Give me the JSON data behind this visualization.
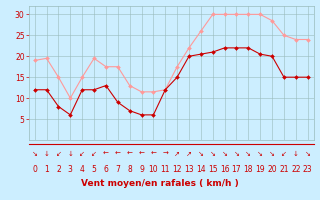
{
  "hours": [
    0,
    1,
    2,
    3,
    4,
    5,
    6,
    7,
    8,
    9,
    10,
    11,
    12,
    13,
    14,
    15,
    16,
    17,
    18,
    19,
    20,
    21,
    22,
    23
  ],
  "vent_moyen": [
    12,
    12,
    8,
    6,
    12,
    12,
    13,
    9,
    7,
    6,
    6,
    12,
    15,
    20,
    20.5,
    21,
    22,
    22,
    22,
    20.5,
    20,
    15,
    15,
    15
  ],
  "rafales": [
    19,
    19.5,
    15,
    10,
    15,
    19.5,
    17.5,
    17.5,
    13,
    11.5,
    11.5,
    12,
    17.5,
    22,
    26,
    30,
    30,
    30,
    30,
    30,
    28.5,
    25,
    24,
    24
  ],
  "wind_symbols": [
    "↘",
    "↓",
    "↙",
    "↓",
    "↙",
    "↙",
    "←",
    "←",
    "←",
    "←",
    "←",
    "→",
    "↗",
    "↗",
    "↘",
    "↘",
    "↘",
    "↘",
    "↘",
    "↘",
    "↘",
    "↙",
    "↓",
    "↘"
  ],
  "xlim": [
    -0.5,
    23.5
  ],
  "ylim": [
    0,
    32
  ],
  "yticks": [
    5,
    10,
    15,
    20,
    25,
    30
  ],
  "xticks": [
    0,
    1,
    2,
    3,
    4,
    5,
    6,
    7,
    8,
    9,
    10,
    11,
    12,
    13,
    14,
    15,
    16,
    17,
    18,
    19,
    20,
    21,
    22,
    23
  ],
  "xlabel": "Vent moyen/en rafales ( km/h )",
  "bg_color": "#cceeff",
  "grid_color": "#99bbbb",
  "line_moyen_color": "#cc0000",
  "line_rafales_color": "#ff9999",
  "symbol_color": "#cc0000",
  "xlabel_fontsize": 6.5,
  "tick_fontsize": 5.5,
  "symbol_fontsize": 5
}
